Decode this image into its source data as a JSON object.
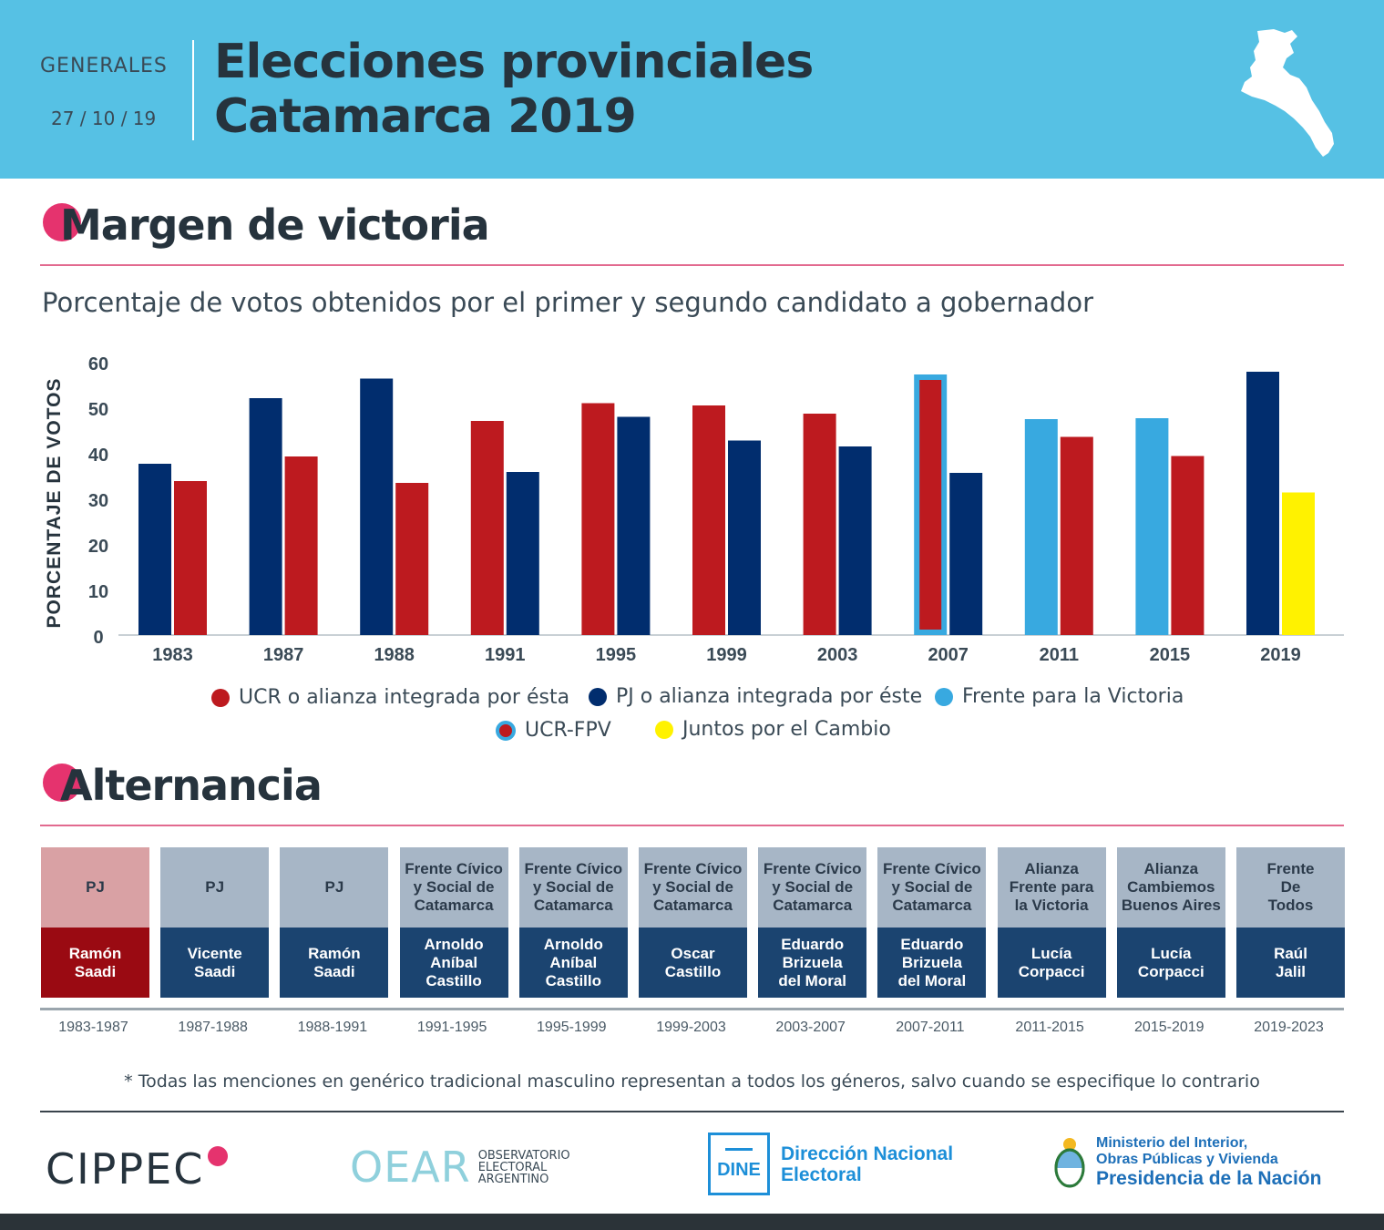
{
  "header": {
    "generales": "GENERALES",
    "date": "27 / 10 / 19",
    "title_line1": "Elecciones provinciales",
    "title_line2": "Catamarca 2019"
  },
  "section1": {
    "title": "Margen de victoria",
    "subtitle": "Porcentaje de votos obtenidos por el primer y segundo candidato a gobernador"
  },
  "colors": {
    "ucr": "#bd1a1f",
    "pj": "#012d6e",
    "fpv": "#38a9e0",
    "jxc": "#fff200",
    "pink": "#e5336e"
  },
  "chart_data": {
    "type": "bar",
    "ylabel": "PORCENTAJE DE VOTOS",
    "ylim": [
      0,
      60
    ],
    "yticks": [
      0,
      10,
      20,
      30,
      40,
      50,
      60
    ],
    "categories": [
      "1983",
      "1987",
      "1988",
      "1991",
      "1995",
      "1999",
      "2003",
      "2007",
      "2011",
      "2015",
      "2019"
    ],
    "bars": [
      [
        {
          "value": 37.6,
          "party": "pj"
        },
        {
          "value": 33.8,
          "party": "ucr"
        }
      ],
      [
        {
          "value": 52.0,
          "party": "pj"
        },
        {
          "value": 39.2,
          "party": "ucr"
        }
      ],
      [
        {
          "value": 56.3,
          "party": "pj"
        },
        {
          "value": 33.4,
          "party": "ucr"
        }
      ],
      [
        {
          "value": 47.0,
          "party": "ucr"
        },
        {
          "value": 35.8,
          "party": "pj"
        }
      ],
      [
        {
          "value": 50.9,
          "party": "ucr"
        },
        {
          "value": 47.9,
          "party": "pj"
        }
      ],
      [
        {
          "value": 50.4,
          "party": "ucr"
        },
        {
          "value": 42.7,
          "party": "pj"
        }
      ],
      [
        {
          "value": 48.6,
          "party": "ucr"
        },
        {
          "value": 41.4,
          "party": "pj"
        }
      ],
      [
        {
          "value": 57.2,
          "party": "ucr-fpv"
        },
        {
          "value": 35.6,
          "party": "pj"
        }
      ],
      [
        {
          "value": 47.4,
          "party": "fpv"
        },
        {
          "value": 43.5,
          "party": "ucr"
        }
      ],
      [
        {
          "value": 47.6,
          "party": "fpv"
        },
        {
          "value": 39.3,
          "party": "ucr"
        }
      ],
      [
        {
          "value": 57.8,
          "party": "pj"
        },
        {
          "value": 31.3,
          "party": "jxc"
        }
      ]
    ],
    "legend": [
      {
        "key": "ucr",
        "label": "UCR o alianza integrada por ésta"
      },
      {
        "key": "pj",
        "label": "PJ o alianza integrada por éste"
      },
      {
        "key": "fpv",
        "label": "Frente para la Victoria"
      },
      {
        "key": "ucr-fpv",
        "label": "UCR-FPV"
      },
      {
        "key": "jxc",
        "label": "Juntos por el Cambio"
      }
    ]
  },
  "section2": {
    "title": "Alternancia",
    "cards": [
      {
        "party": "PJ",
        "name": "Ramón\nSaadi",
        "period": "1983-1987",
        "highlight": true
      },
      {
        "party": "PJ",
        "name": "Vicente\nSaadi",
        "period": "1987-1988",
        "highlight": false
      },
      {
        "party": "PJ",
        "name": "Ramón\nSaadi",
        "period": "1988-1991",
        "highlight": false
      },
      {
        "party": "Frente Cívico\ny Social de\nCatamarca",
        "name": "Arnoldo\nAníbal\nCastillo",
        "period": "1991-1995",
        "highlight": false
      },
      {
        "party": "Frente Cívico\ny Social de\nCatamarca",
        "name": "Arnoldo\nAníbal\nCastillo",
        "period": "1995-1999",
        "highlight": false
      },
      {
        "party": "Frente Cívico\ny Social de\nCatamarca",
        "name": "Oscar\nCastillo",
        "period": "1999-2003",
        "highlight": false
      },
      {
        "party": "Frente Cívico\ny Social de\nCatamarca",
        "name": "Eduardo\nBrizuela\ndel Moral",
        "period": "2003-2007",
        "highlight": false
      },
      {
        "party": "Frente Cívico\ny Social de\nCatamarca",
        "name": "Eduardo\nBrizuela\ndel Moral",
        "period": "2007-2011",
        "highlight": false
      },
      {
        "party": "Alianza\nFrente para\nla Victoria",
        "name": "Lucía\nCorpacci",
        "period": "2011-2015",
        "highlight": false
      },
      {
        "party": "Alianza\nCambiemos\nBuenos Aires",
        "name": "Lucía\nCorpacci",
        "period": "2015-2019",
        "highlight": false
      },
      {
        "party": "Frente\nDe\nTodos",
        "name": "Raúl\nJalil",
        "period": "2019-2023",
        "highlight": false
      }
    ]
  },
  "footnote": "* Todas las menciones en genérico tradicional masculino representan a todos los géneros, salvo cuando se especifique lo contrario",
  "logos": {
    "cippec": "CIPPEC",
    "oear_big": "OEAR",
    "oear_l1": "OBSERVATORIO",
    "oear_l2": "ELECTORAL",
    "oear_l3": "ARGENTINO",
    "dine_badge": "DINE",
    "dine_l1": "Dirección Nacional",
    "dine_l2": "Electoral",
    "min_l1": "Ministerio del Interior,",
    "min_l2": "Obras Públicas y Vivienda",
    "min_l3": "Presidencia de la Nación"
  }
}
